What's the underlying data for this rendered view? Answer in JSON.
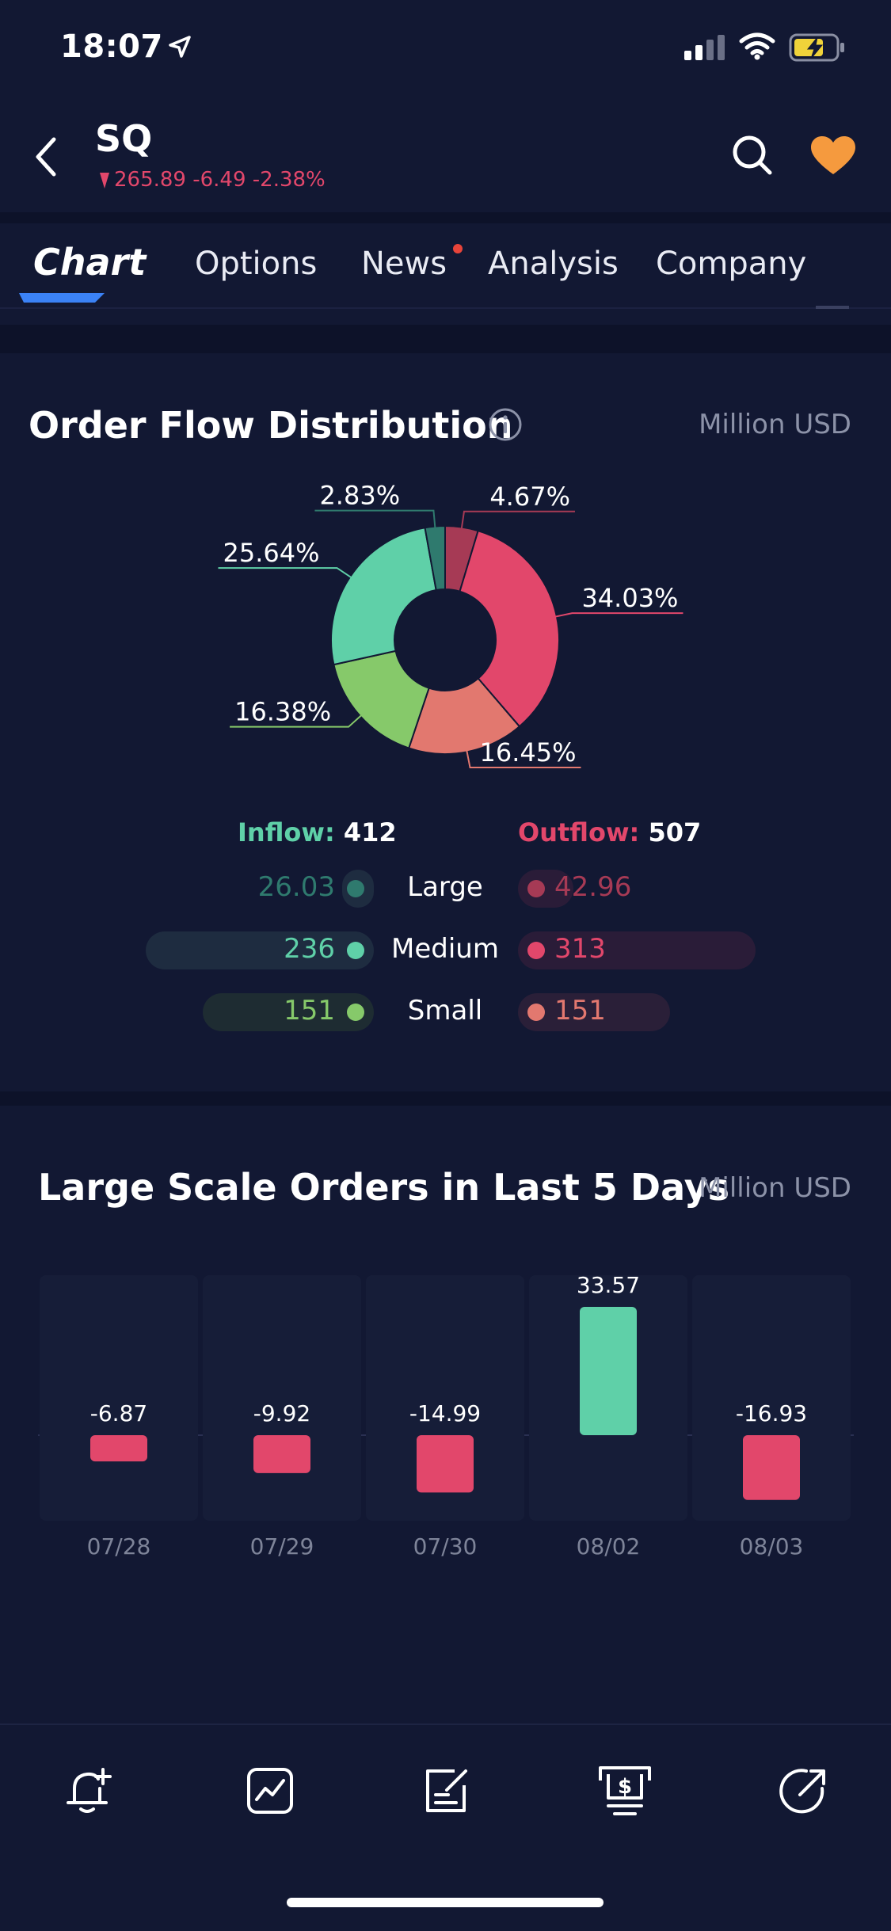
{
  "status": {
    "time": "18:07"
  },
  "header": {
    "ticker": "SQ",
    "price": "265.89 -6.49 -2.38%"
  },
  "tabs": [
    {
      "label": "Chart",
      "active": true
    },
    {
      "label": "Options"
    },
    {
      "label": "News",
      "has_dot": true
    },
    {
      "label": "Analysis"
    },
    {
      "label": "Company"
    }
  ],
  "order_flow": {
    "title": "Order Flow Distribution",
    "unit": "Million USD",
    "inflow_label": "Inflow:",
    "inflow_value": "412",
    "outflow_label": "Outflow:",
    "outflow_value": "507",
    "rows": [
      {
        "size": "Large",
        "inflow": "26.03",
        "outflow": "42.96"
      },
      {
        "size": "Medium",
        "inflow": "236",
        "outflow": "313"
      },
      {
        "size": "Small",
        "inflow": "151",
        "outflow": "151"
      }
    ]
  },
  "large_orders": {
    "title": "Large Scale Orders in Last 5 Days",
    "unit": "Million USD"
  },
  "chart_data": [
    {
      "type": "pie",
      "categories": [
        "Outflow Large",
        "Outflow Medium",
        "Outflow Small",
        "Inflow Small",
        "Inflow Medium",
        "Inflow Large"
      ],
      "values": [
        4.67,
        34.03,
        16.45,
        16.38,
        25.64,
        2.83
      ],
      "labels": [
        "4.67%",
        "34.03%",
        "16.45%",
        "16.38%",
        "25.64%",
        "2.83%"
      ],
      "colors": [
        "#a63a55",
        "#e2476b",
        "#e2786f",
        "#86c96a",
        "#5fd0a8",
        "#2f7a6e"
      ],
      "donut": true
    },
    {
      "type": "bar",
      "categories": [
        "07/28",
        "07/29",
        "07/30",
        "08/02",
        "08/03"
      ],
      "values": [
        -6.87,
        -9.92,
        -14.99,
        33.57,
        -16.93
      ],
      "value_labels": [
        "-6.87",
        "-9.92",
        "-14.99",
        "33.57",
        "-16.93"
      ],
      "positive_color": "#5fd0a8",
      "negative_color": "#e2476b"
    }
  ]
}
